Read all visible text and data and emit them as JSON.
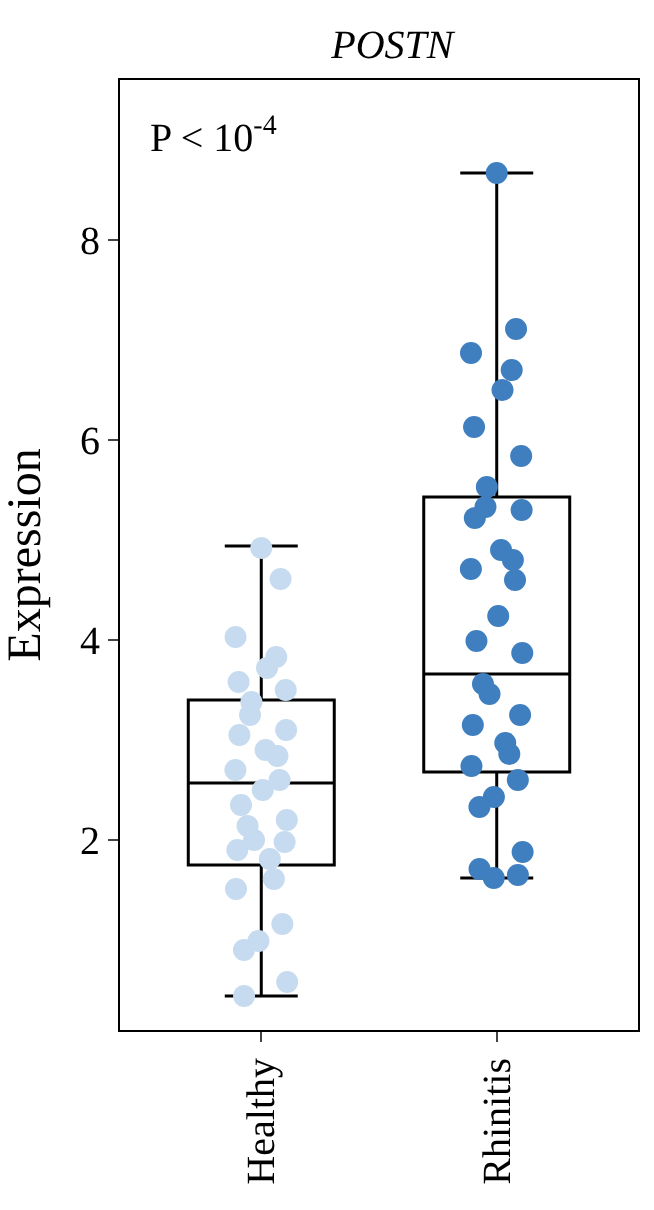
{
  "chart_data": {
    "type": "box",
    "title": "POSTN",
    "ylabel": "Expression",
    "categories": [
      "Healthy",
      "Rhinitis"
    ],
    "boxes": [
      {
        "low": 0.44,
        "q1": 1.75,
        "median": 2.57,
        "q3": 3.4,
        "high": 4.94
      },
      {
        "low": 1.62,
        "q1": 2.68,
        "median": 3.66,
        "q3": 5.43,
        "high": 8.67
      }
    ],
    "series": [
      {
        "type": "scatter",
        "color": "#c6dbef",
        "x": [
          "Healthy",
          "Healthy",
          "Healthy",
          "Healthy",
          "Healthy",
          "Healthy",
          "Healthy",
          "Healthy",
          "Healthy",
          "Healthy",
          "Healthy",
          "Healthy",
          "Healthy",
          "Healthy",
          "Healthy",
          "Healthy",
          "Healthy",
          "Healthy",
          "Healthy",
          "Healthy",
          "Healthy",
          "Healthy",
          "Healthy",
          "Healthy",
          "Healthy",
          "Healthy",
          "Healthy",
          "Healthy",
          "Healthy",
          "Healthy"
        ],
        "values": [
          4.92,
          4.61,
          4.03,
          3.83,
          3.72,
          3.58,
          3.5,
          3.38,
          3.25,
          3.1,
          3.05,
          2.9,
          2.84,
          2.7,
          2.6,
          2.5,
          2.35,
          2.2,
          2.14,
          2.0,
          1.98,
          1.9,
          1.81,
          1.61,
          1.51,
          1.16,
          0.99,
          0.9,
          0.58,
          0.44
        ]
      },
      {
        "type": "scatter",
        "color": "#3f7fbf",
        "x": [
          "Rhinitis",
          "Rhinitis",
          "Rhinitis",
          "Rhinitis",
          "Rhinitis",
          "Rhinitis",
          "Rhinitis",
          "Rhinitis",
          "Rhinitis",
          "Rhinitis",
          "Rhinitis",
          "Rhinitis",
          "Rhinitis",
          "Rhinitis",
          "Rhinitis",
          "Rhinitis",
          "Rhinitis",
          "Rhinitis",
          "Rhinitis",
          "Rhinitis",
          "Rhinitis",
          "Rhinitis",
          "Rhinitis",
          "Rhinitis",
          "Rhinitis",
          "Rhinitis",
          "Rhinitis",
          "Rhinitis",
          "Rhinitis",
          "Rhinitis",
          "Rhinitis",
          "Rhinitis"
        ],
        "values": [
          8.67,
          7.11,
          6.87,
          6.7,
          6.5,
          6.13,
          5.84,
          5.53,
          5.33,
          5.3,
          5.22,
          4.9,
          4.8,
          4.71,
          4.6,
          4.24,
          3.99,
          3.87,
          3.56,
          3.46,
          3.25,
          3.15,
          2.97,
          2.86,
          2.74,
          2.6,
          2.43,
          2.33,
          1.88,
          1.71,
          1.62,
          1.65
        ]
      }
    ],
    "annotations": [
      "P < 10$^{-4}$"
    ],
    "ylim": [
      0.1,
      9.6
    ],
    "yticks": [
      2,
      4,
      6,
      8
    ],
    "legend": false,
    "marker": "circle"
  }
}
